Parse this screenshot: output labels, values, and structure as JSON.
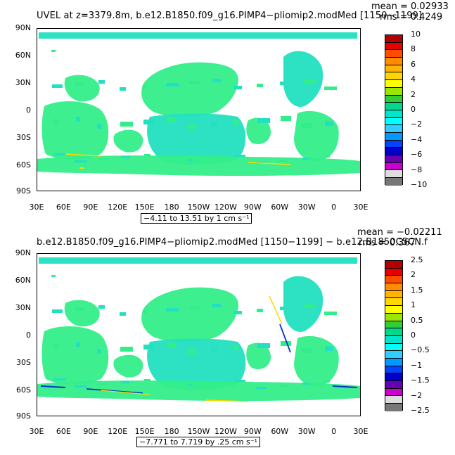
{
  "top": {
    "title": "UVEL at z=3379.8m, b.e12.B1850.f09_g16.PIMP4−pliomip2.modMed [1150−1199]",
    "mean": "mean = 0.02933",
    "rms": "rms = 0.4249",
    "range": "−4.11 to 13.51 by 1 cm s⁻¹",
    "colorbar_labels": [
      "10",
      "8",
      "6",
      "4",
      "2",
      "0",
      "−2",
      "−4",
      "−6",
      "−8",
      "−10"
    ]
  },
  "bottom": {
    "title": "b.e12.B1850.f09_g16.PIMP4−pliomip2.modMed [1150−1199] − b.e12.B1850C5CN.f",
    "mean": "mean = −0.02211",
    "rms": "rms = 0.367",
    "range": "−7.771 to 7.719 by .25 cm s⁻¹",
    "colorbar_labels": [
      "2.5",
      "2",
      "1.5",
      "1",
      "0.5",
      "0",
      "−0.5",
      "−1",
      "−1.5",
      "−2",
      "−2.5"
    ]
  },
  "axes": {
    "lat_labels": [
      "90N",
      "60N",
      "30N",
      "0",
      "30S",
      "60S",
      "90S"
    ],
    "lon_labels": [
      "30E",
      "60E",
      "90E",
      "120E",
      "150E",
      "180",
      "150W",
      "120W",
      "90W",
      "60W",
      "30W",
      "0",
      "30E"
    ]
  },
  "colorbar_colors": [
    "#b30000",
    "#e60000",
    "#ff4d00",
    "#ff8c00",
    "#ffb400",
    "#ffd700",
    "#ffff00",
    "#99e600",
    "#33cc33",
    "#00d98c",
    "#00e6c8",
    "#00ffff",
    "#33ccff",
    "#0099ff",
    "#0044ff",
    "#0000cc",
    "#6a00b3",
    "#cc00cc",
    "#dddddd",
    "#777777"
  ],
  "map_colors": {
    "land": "#ffffff",
    "ocean_main": "#33ee88",
    "ocean_alt": "#22e0c0",
    "pos": "#ffd700",
    "neg": "#0033cc"
  }
}
